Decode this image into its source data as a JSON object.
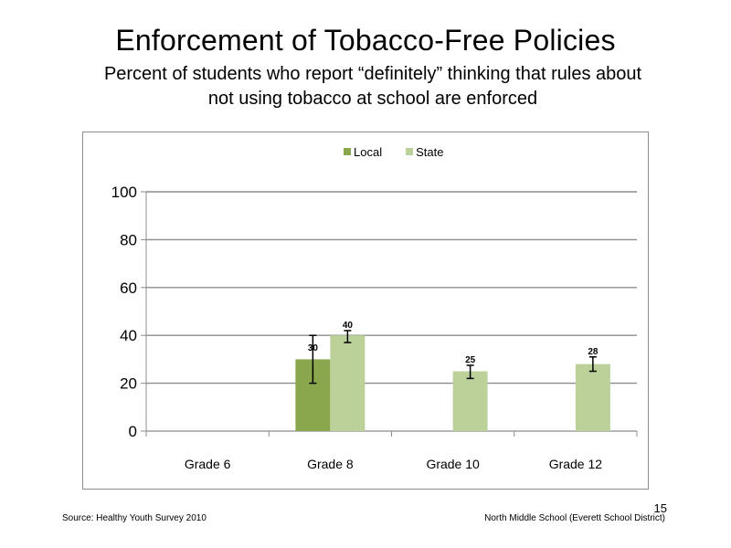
{
  "slide": {
    "title": "Enforcement  of Tobacco-Free  Policies",
    "subtitle": "Percent of students  who report “definitely” thinking  that rules about not using tobacco at school are enforced",
    "source": "Source: Healthy  Youth Survey 2010",
    "school": "North Middle  School (Everett School District)",
    "page_number": "15"
  },
  "chart_data": {
    "type": "bar",
    "categories": [
      "Grade 6",
      "Grade 8",
      "Grade 10",
      "Grade 12"
    ],
    "series": [
      {
        "name": "Local",
        "color": "#8aa74e",
        "values": [
          null,
          30,
          null,
          null
        ],
        "labels": [
          null,
          "30",
          null,
          null
        ],
        "error": [
          null,
          [
            20,
            40
          ],
          null,
          null
        ]
      },
      {
        "name": "State",
        "color": "#bcd19a",
        "values": [
          null,
          40,
          25,
          28
        ],
        "labels": [
          null,
          "40",
          "25",
          "28"
        ],
        "error": [
          null,
          [
            37,
            42
          ],
          [
            22,
            27.5
          ],
          [
            25,
            31
          ]
        ]
      }
    ],
    "ylim": [
      0,
      100
    ],
    "yticks": [
      0,
      20,
      40,
      60,
      80,
      100
    ],
    "grid": true,
    "legend": "top-center"
  }
}
